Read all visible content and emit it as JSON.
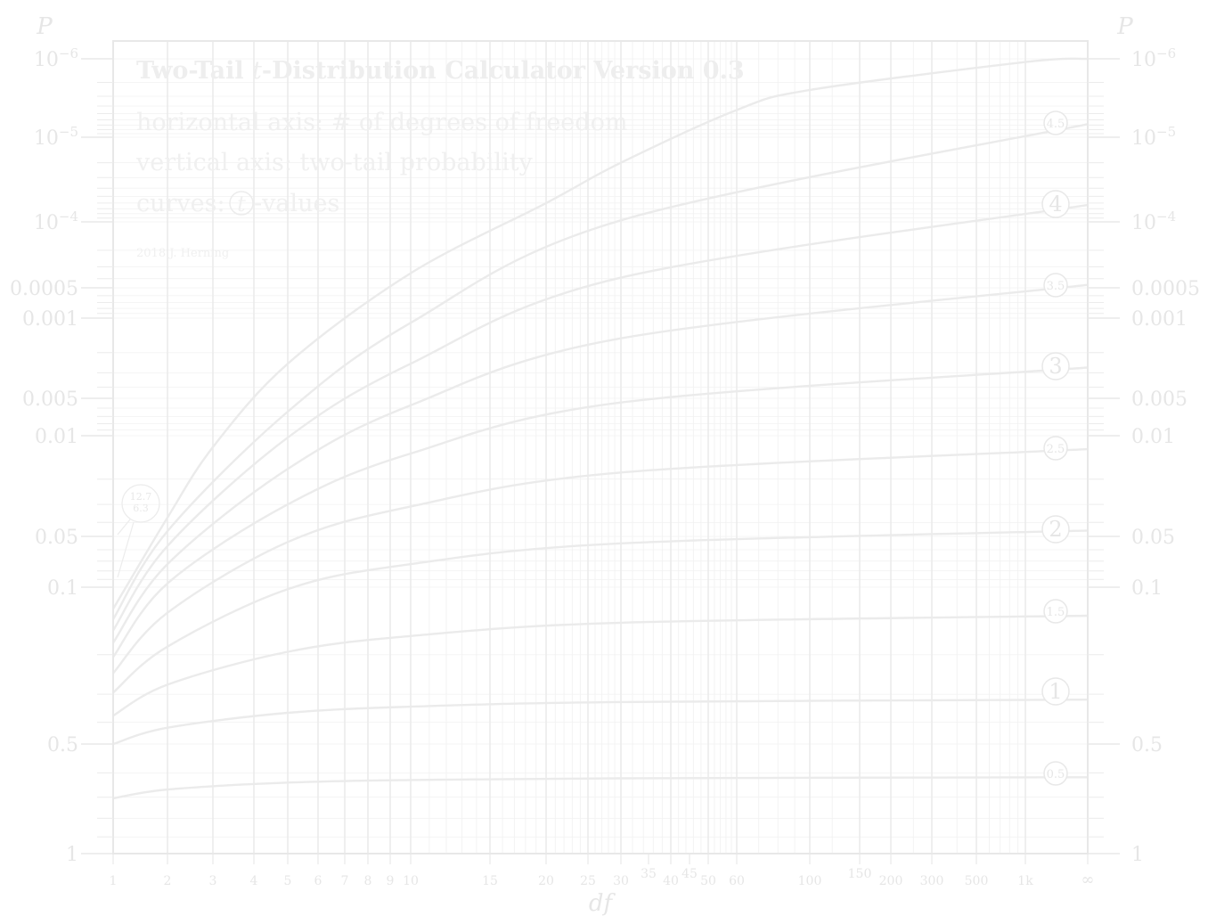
{
  "chart_data": {
    "type": "line",
    "title": {
      "prefix": "Two-Tail ",
      "var": "t",
      "suffix": "-Distribution Calculator Version 0.3"
    },
    "description": [
      "horizontal axis: # of degrees of freedom",
      "vertical axis: two-tail probability",
      "curves: t-values"
    ],
    "curves_prefix": "curves: ",
    "curves_var": "t",
    "curves_suffix": "-values",
    "credit": "2018 J. Herning",
    "xlabel": "df",
    "ylabel": "P",
    "x_scale": "transformed (approximately 1/df-like; ∞ at right edge)",
    "y_scale": "log of two-tail probability (reversed, 1 at bottom, 10^-6 at top)",
    "x_ticks": [
      "1",
      "2",
      "3",
      "4",
      "5",
      "6",
      "7",
      "8",
      "9",
      "10",
      "15",
      "20",
      "25",
      "30",
      "35",
      "40",
      "45",
      "50",
      "60",
      "100",
      "150",
      "200",
      "300",
      "500",
      "1k",
      "∞"
    ],
    "y_ticks": [
      "10^-6",
      "10^-5",
      "10^-4",
      "0.0005",
      "0.001",
      "0.005",
      "0.01",
      "0.05",
      "0.1",
      "0.5",
      "1"
    ],
    "curve_labels": [
      "0.5",
      "1",
      "1.5",
      "2",
      "2.5",
      "3",
      "3.5",
      "4",
      "4.5"
    ],
    "callout": [
      "12.7",
      "6.3"
    ],
    "series": [
      {
        "t": 0.5,
        "points": [
          [
            1,
            0.705
          ],
          [
            2,
            0.667
          ],
          [
            5,
            0.638
          ],
          [
            10,
            0.628
          ],
          [
            30,
            0.621
          ],
          [
            "∞",
            0.617
          ]
        ]
      },
      {
        "t": 1,
        "points": [
          [
            1,
            0.5
          ],
          [
            2,
            0.423
          ],
          [
            5,
            0.363
          ],
          [
            10,
            0.341
          ],
          [
            30,
            0.325
          ],
          [
            "∞",
            0.317
          ]
        ]
      },
      {
        "t": 1.5,
        "points": [
          [
            1,
            0.374
          ],
          [
            2,
            0.272
          ],
          [
            5,
            0.194
          ],
          [
            10,
            0.165
          ],
          [
            30,
            0.144
          ],
          [
            "∞",
            0.134
          ]
        ]
      },
      {
        "t": 2,
        "points": [
          [
            1,
            0.295
          ],
          [
            2,
            0.184
          ],
          [
            5,
            0.102
          ],
          [
            10,
            0.073
          ],
          [
            30,
            0.055
          ],
          [
            "∞",
            0.0455
          ]
        ]
      },
      {
        "t": 2.5,
        "points": [
          [
            1,
            0.242
          ],
          [
            2,
            0.13
          ],
          [
            5,
            0.054
          ],
          [
            10,
            0.031
          ],
          [
            30,
            0.018
          ],
          [
            "∞",
            0.0124
          ]
        ]
      },
      {
        "t": 3,
        "points": [
          [
            1,
            0.205
          ],
          [
            2,
            0.095
          ],
          [
            5,
            0.03
          ],
          [
            10,
            0.0133
          ],
          [
            30,
            0.0054
          ],
          [
            "∞",
            0.0027
          ]
        ]
      },
      {
        "t": 3.5,
        "points": [
          [
            1,
            0.177
          ],
          [
            2,
            0.073
          ],
          [
            5,
            0.017
          ],
          [
            10,
            0.0057
          ],
          [
            30,
            0.0015
          ],
          [
            "∞",
            0.000465
          ]
        ]
      },
      {
        "t": 4,
        "points": [
          [
            1,
            0.156
          ],
          [
            2,
            0.057
          ],
          [
            5,
            0.0103
          ],
          [
            10,
            0.0025
          ],
          [
            30,
            0.00039
          ],
          [
            "∞",
            6.33e-05
          ]
        ]
      },
      {
        "t": 4.5,
        "points": [
          [
            1,
            0.139
          ],
          [
            2,
            0.046
          ],
          [
            5,
            0.0064
          ],
          [
            10,
            0.0011
          ],
          [
            30,
            9.6e-05
          ],
          [
            "∞",
            6.8e-06
          ]
        ]
      }
    ]
  }
}
